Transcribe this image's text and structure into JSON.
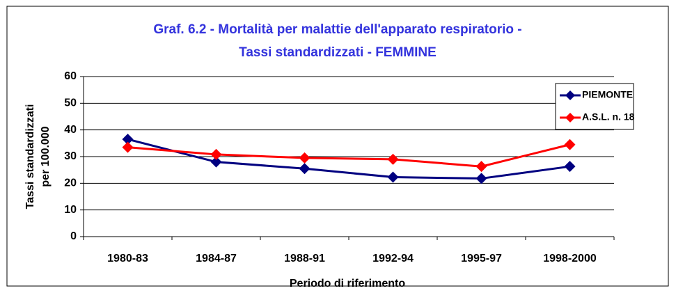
{
  "chart_data": {
    "type": "line",
    "title": [
      "Graf. 6.2 - Mortalità per malattie dell'apparato respiratorio -",
      "Tassi standardizzati -  FEMMINE"
    ],
    "y_label": [
      "Tassi standardizzati",
      "per 100.000"
    ],
    "x_label": "Periodo di riferimento",
    "categories": [
      "1980-83",
      "1984-87",
      "1988-91",
      "1992-94",
      "1995-97",
      "1998-2000"
    ],
    "series": [
      {
        "name": "PIEMONTE",
        "color": "#000080",
        "marker": "diamond",
        "values": [
          36.5,
          28,
          25.5,
          22.3,
          21.8,
          26.3
        ]
      },
      {
        "name": "A.S.L. n. 18",
        "color": "#ff0000",
        "marker": "diamond",
        "values": [
          33.5,
          30.8,
          29.5,
          29,
          26.3,
          34.5
        ]
      }
    ],
    "ylim": [
      0,
      60
    ],
    "yticks": [
      0,
      10,
      20,
      30,
      40,
      50,
      60
    ],
    "grid": true,
    "legend": "upper right"
  }
}
